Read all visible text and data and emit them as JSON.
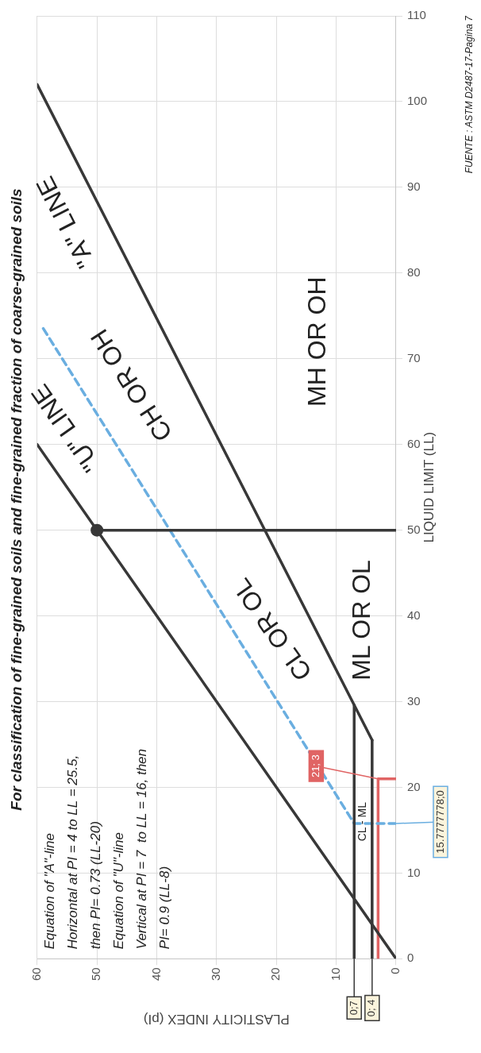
{
  "chart_data": {
    "type": "line",
    "title": "For classification of fine-grained soils and fine-grained fraction of coarse-grained soils",
    "xlabel": "PLASTICITY INDEX (pI)",
    "ylabel": "LIQUID LIMIT (LL)",
    "xlim": [
      60,
      0
    ],
    "xticks": [
      60,
      50,
      40,
      30,
      20,
      10,
      0
    ],
    "ylim": [
      0,
      110
    ],
    "yticks": [
      0,
      10,
      20,
      30,
      40,
      50,
      60,
      70,
      80,
      90,
      100,
      110
    ],
    "grid": true,
    "series": [
      {
        "color": "#383838",
        "x": [
          0,
          60
        ],
        "values": [
          0,
          60
        ]
      },
      {
        "color": "#383838",
        "x": [
          4,
          60
        ],
        "values": [
          25.5,
          102
        ]
      },
      {
        "color": "#383838",
        "x": [
          7,
          7
        ],
        "values": [
          0,
          29.6
        ]
      },
      {
        "color": "#383838",
        "x": [
          4,
          4
        ],
        "values": [
          0,
          25.5
        ]
      },
      {
        "color": "#383838",
        "x": [
          0,
          50
        ],
        "values": [
          50,
          50
        ]
      },
      {
        "type": "scatter",
        "marker": "circle",
        "color": "#383838",
        "x": [
          50
        ],
        "values": [
          50
        ]
      },
      {
        "color": "#6aaee0",
        "line_style": "dashed",
        "x": [
          0,
          7,
          59.4
        ],
        "values": [
          15.7777778,
          15.7777778,
          74
        ]
      },
      {
        "color": "#e06464",
        "x": [
          3,
          3,
          0
        ],
        "values": [
          0,
          21,
          21
        ]
      }
    ],
    "annotations": [
      "Equation of \"A\"-line",
      "Horizontal at PI = 4 to LL = 25.5,",
      "then PI= 0.73 (LL-20)",
      "Equation of \"U\"-line",
      "Vertical at PI = 7  to LL = 16, then",
      "PI= 0.9 (LL-8)",
      "FUENTE : ASTM D2487-17-Pagina 7",
      "CL OR OL",
      "ML OR OL",
      "CH OR OH",
      "MH OR OH",
      "CL - ML",
      "\"U\" LINE",
      "\"A\" LINE",
      {
        "text": "0;7",
        "x": 7,
        "y": 0
      },
      {
        "text": "0; 4",
        "x": 4,
        "y": 0
      },
      {
        "text": "21; 3",
        "x": 3,
        "y": 21
      },
      {
        "text": "15.7777778;0",
        "x": 0,
        "y": 15.7777778
      }
    ]
  }
}
